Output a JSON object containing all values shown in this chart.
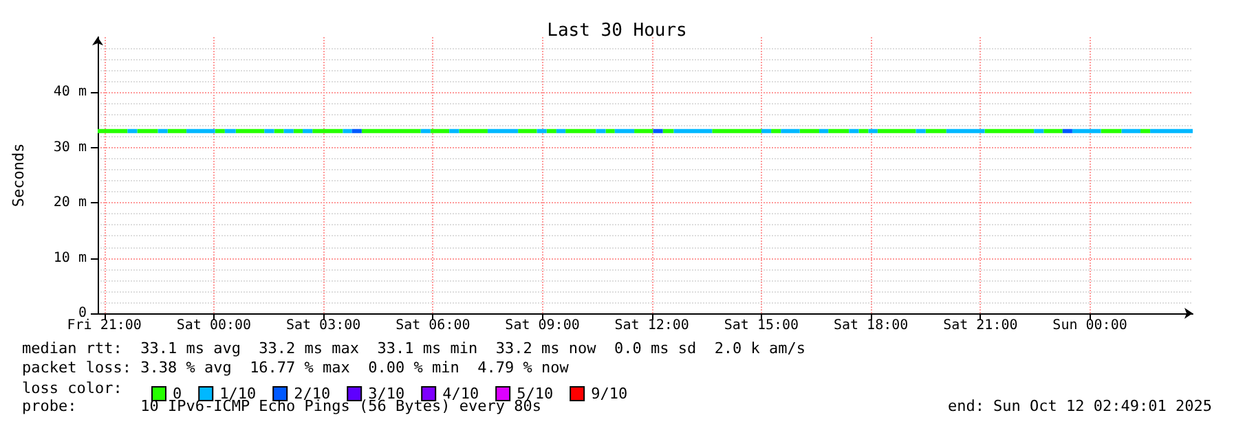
{
  "chart_data": {
    "type": "line",
    "title": "Last 30 Hours",
    "ylabel": "Seconds",
    "legend_title": "loss color:",
    "annotations": [
      "median rtt:  33.1 ms avg  33.2 ms max  33.1 ms min  33.2 ms now  0.0 ms sd  2.0 k am/s",
      "packet loss: 3.38 % avg  16.77 % max  0.00 % min  4.79 % now",
      "probe:       10 IPv6-ICMP Echo Pings (56 Bytes) every 80s",
      "end: Sun Oct 12 02:49:01 2025"
    ],
    "series": [
      {
        "name": "0",
        "color": "#26ff00",
        "x": [
          "2025-10-10T20:49",
          "2025-10-10T21:38",
          null,
          "2025-10-10T21:54",
          "2025-10-10T22:28",
          null,
          "2025-10-10T22:44",
          "2025-10-10T23:15",
          null,
          "2025-10-11T00:02",
          "2025-10-11T00:18",
          null,
          "2025-10-11T00:36",
          "2025-10-11T01:23",
          null,
          "2025-10-11T01:39",
          "2025-10-11T01:55",
          null,
          "2025-10-11T02:11",
          "2025-10-11T02:26",
          null,
          "2025-10-11T02:42",
          "2025-10-11T03:32",
          null,
          "2025-10-11T04:03",
          "2025-10-11T05:40",
          null,
          "2025-10-11T05:56",
          "2025-10-11T06:27",
          null,
          "2025-10-11T06:43",
          "2025-10-11T07:30",
          null,
          "2025-10-11T08:20",
          "2025-10-11T08:51",
          null,
          "2025-10-11T09:07",
          "2025-10-11T09:23",
          null,
          "2025-10-11T09:38",
          "2025-10-11T10:28",
          null,
          "2025-10-11T10:44",
          "2025-10-11T10:59",
          null,
          "2025-10-11T11:31",
          "2025-10-11T12:02",
          null,
          "2025-10-11T12:18",
          "2025-10-11T12:36",
          null,
          "2025-10-11T13:39",
          "2025-10-11T15:00",
          null,
          "2025-10-11T15:16",
          "2025-10-11T15:32",
          null,
          "2025-10-11T16:03",
          "2025-10-11T16:35",
          null,
          "2025-10-11T16:50",
          "2025-10-11T17:24",
          null,
          "2025-10-11T17:40",
          "2025-10-11T17:56",
          null,
          "2025-10-11T18:11",
          "2025-10-11T19:14",
          null,
          "2025-10-11T19:30",
          "2025-10-11T20:04",
          null,
          "2025-10-11T21:07",
          "2025-10-11T22:28",
          null,
          "2025-10-11T22:44",
          "2025-10-11T23:15",
          null,
          "2025-10-12T00:18",
          "2025-10-12T00:52",
          null,
          "2025-10-12T01:23",
          "2025-10-12T01:39"
        ],
        "values": [
          33,
          33,
          null,
          33,
          33,
          null,
          33,
          33,
          null,
          33,
          33,
          null,
          33,
          33,
          null,
          33,
          33,
          null,
          33,
          33,
          null,
          33,
          33,
          null,
          33,
          33,
          null,
          33,
          33,
          null,
          33,
          33,
          null,
          33,
          33,
          null,
          33,
          33,
          null,
          33,
          33,
          null,
          33,
          33,
          null,
          33,
          33,
          null,
          33,
          33,
          null,
          33,
          33,
          null,
          33,
          33,
          null,
          33,
          33,
          null,
          33,
          33,
          null,
          33,
          33,
          null,
          33,
          33,
          null,
          33,
          33,
          null,
          33,
          33,
          null,
          33,
          33,
          null,
          33,
          33,
          null,
          33,
          33
        ]
      },
      {
        "name": "1/10",
        "color": "#00b8ff",
        "x": [
          "2025-10-10T21:38",
          "2025-10-10T21:54",
          null,
          "2025-10-10T22:28",
          "2025-10-10T22:44",
          null,
          "2025-10-10T23:15",
          "2025-10-11T00:02",
          null,
          "2025-10-11T00:18",
          "2025-10-11T00:36",
          null,
          "2025-10-11T01:23",
          "2025-10-11T01:39",
          null,
          "2025-10-11T01:55",
          "2025-10-11T02:11",
          null,
          "2025-10-11T02:26",
          "2025-10-11T02:42",
          null,
          "2025-10-11T03:32",
          "2025-10-11T03:47",
          null,
          "2025-10-11T05:40",
          "2025-10-11T05:56",
          null,
          "2025-10-11T06:27",
          "2025-10-11T06:43",
          null,
          "2025-10-11T07:30",
          "2025-10-11T08:20",
          null,
          "2025-10-11T08:51",
          "2025-10-11T09:07",
          null,
          "2025-10-11T09:23",
          "2025-10-11T09:38",
          null,
          "2025-10-11T10:28",
          "2025-10-11T10:44",
          null,
          "2025-10-11T10:59",
          "2025-10-11T11:31",
          null,
          "2025-10-11T12:36",
          "2025-10-11T13:39",
          null,
          "2025-10-11T15:00",
          "2025-10-11T15:16",
          null,
          "2025-10-11T15:32",
          "2025-10-11T16:03",
          null,
          "2025-10-11T16:35",
          "2025-10-11T16:50",
          null,
          "2025-10-11T17:24",
          "2025-10-11T17:40",
          null,
          "2025-10-11T17:56",
          "2025-10-11T18:11",
          null,
          "2025-10-11T19:14",
          "2025-10-11T19:30",
          null,
          "2025-10-11T20:04",
          "2025-10-11T21:07",
          null,
          "2025-10-11T22:28",
          "2025-10-11T22:44",
          null,
          "2025-10-11T23:31",
          "2025-10-12T00:18",
          null,
          "2025-10-12T00:52",
          "2025-10-12T01:23",
          null,
          "2025-10-12T01:39",
          "2025-10-12T02:49"
        ],
        "values": [
          33,
          33,
          null,
          33,
          33,
          null,
          33,
          33,
          null,
          33,
          33,
          null,
          33,
          33,
          null,
          33,
          33,
          null,
          33,
          33,
          null,
          33,
          33,
          null,
          33,
          33,
          null,
          33,
          33,
          null,
          33,
          33,
          null,
          33,
          33,
          null,
          33,
          33,
          null,
          33,
          33,
          null,
          33,
          33,
          null,
          33,
          33,
          null,
          33,
          33,
          null,
          33,
          33,
          null,
          33,
          33,
          null,
          33,
          33,
          null,
          33,
          33,
          null,
          33,
          33,
          null,
          33,
          33,
          null,
          33,
          33,
          null,
          33,
          33,
          null,
          33,
          33,
          null,
          33,
          33
        ]
      },
      {
        "name": "2/10",
        "color": "#0059ff",
        "x": [
          "2025-10-11T03:47",
          "2025-10-11T04:03",
          null,
          "2025-10-11T12:02",
          "2025-10-11T12:18",
          null,
          "2025-10-11T23:15",
          "2025-10-11T23:31"
        ],
        "values": [
          33,
          33,
          null,
          33,
          33,
          null,
          33,
          33
        ]
      },
      {
        "name": "3/10",
        "color": "#5e00ff"
      },
      {
        "name": "4/10",
        "color": "#7e00ff"
      },
      {
        "name": "5/10",
        "color": "#dd00ff"
      },
      {
        "name": "9/10",
        "color": "#ff0000"
      }
    ],
    "xlim": [
      "2025-10-10T20:49",
      "2025-10-12T02:49"
    ],
    "xticks": [
      {
        "value": "2025-10-10T21:00",
        "label": "Fri 21:00"
      },
      {
        "value": "2025-10-11T00:00",
        "label": "Sat 00:00"
      },
      {
        "value": "2025-10-11T03:00",
        "label": "Sat 03:00"
      },
      {
        "value": "2025-10-11T06:00",
        "label": "Sat 06:00"
      },
      {
        "value": "2025-10-11T09:00",
        "label": "Sat 09:00"
      },
      {
        "value": "2025-10-11T12:00",
        "label": "Sat 12:00"
      },
      {
        "value": "2025-10-11T15:00",
        "label": "Sat 15:00"
      },
      {
        "value": "2025-10-11T18:00",
        "label": "Sat 18:00"
      },
      {
        "value": "2025-10-11T21:00",
        "label": "Sat 21:00"
      },
      {
        "value": "2025-10-12T00:00",
        "label": "Sun 00:00"
      }
    ],
    "ylim": [
      0,
      50
    ],
    "yticks": [
      0,
      {
        "value": 10,
        "label": "10 m"
      },
      {
        "value": 20,
        "label": "20 m"
      },
      {
        "value": 30,
        "label": "30 m"
      },
      {
        "value": 40,
        "label": "40 m"
      }
    ],
    "grid": true,
    "legend": "bottom",
    "marker": "none",
    "line_style": "solid"
  }
}
